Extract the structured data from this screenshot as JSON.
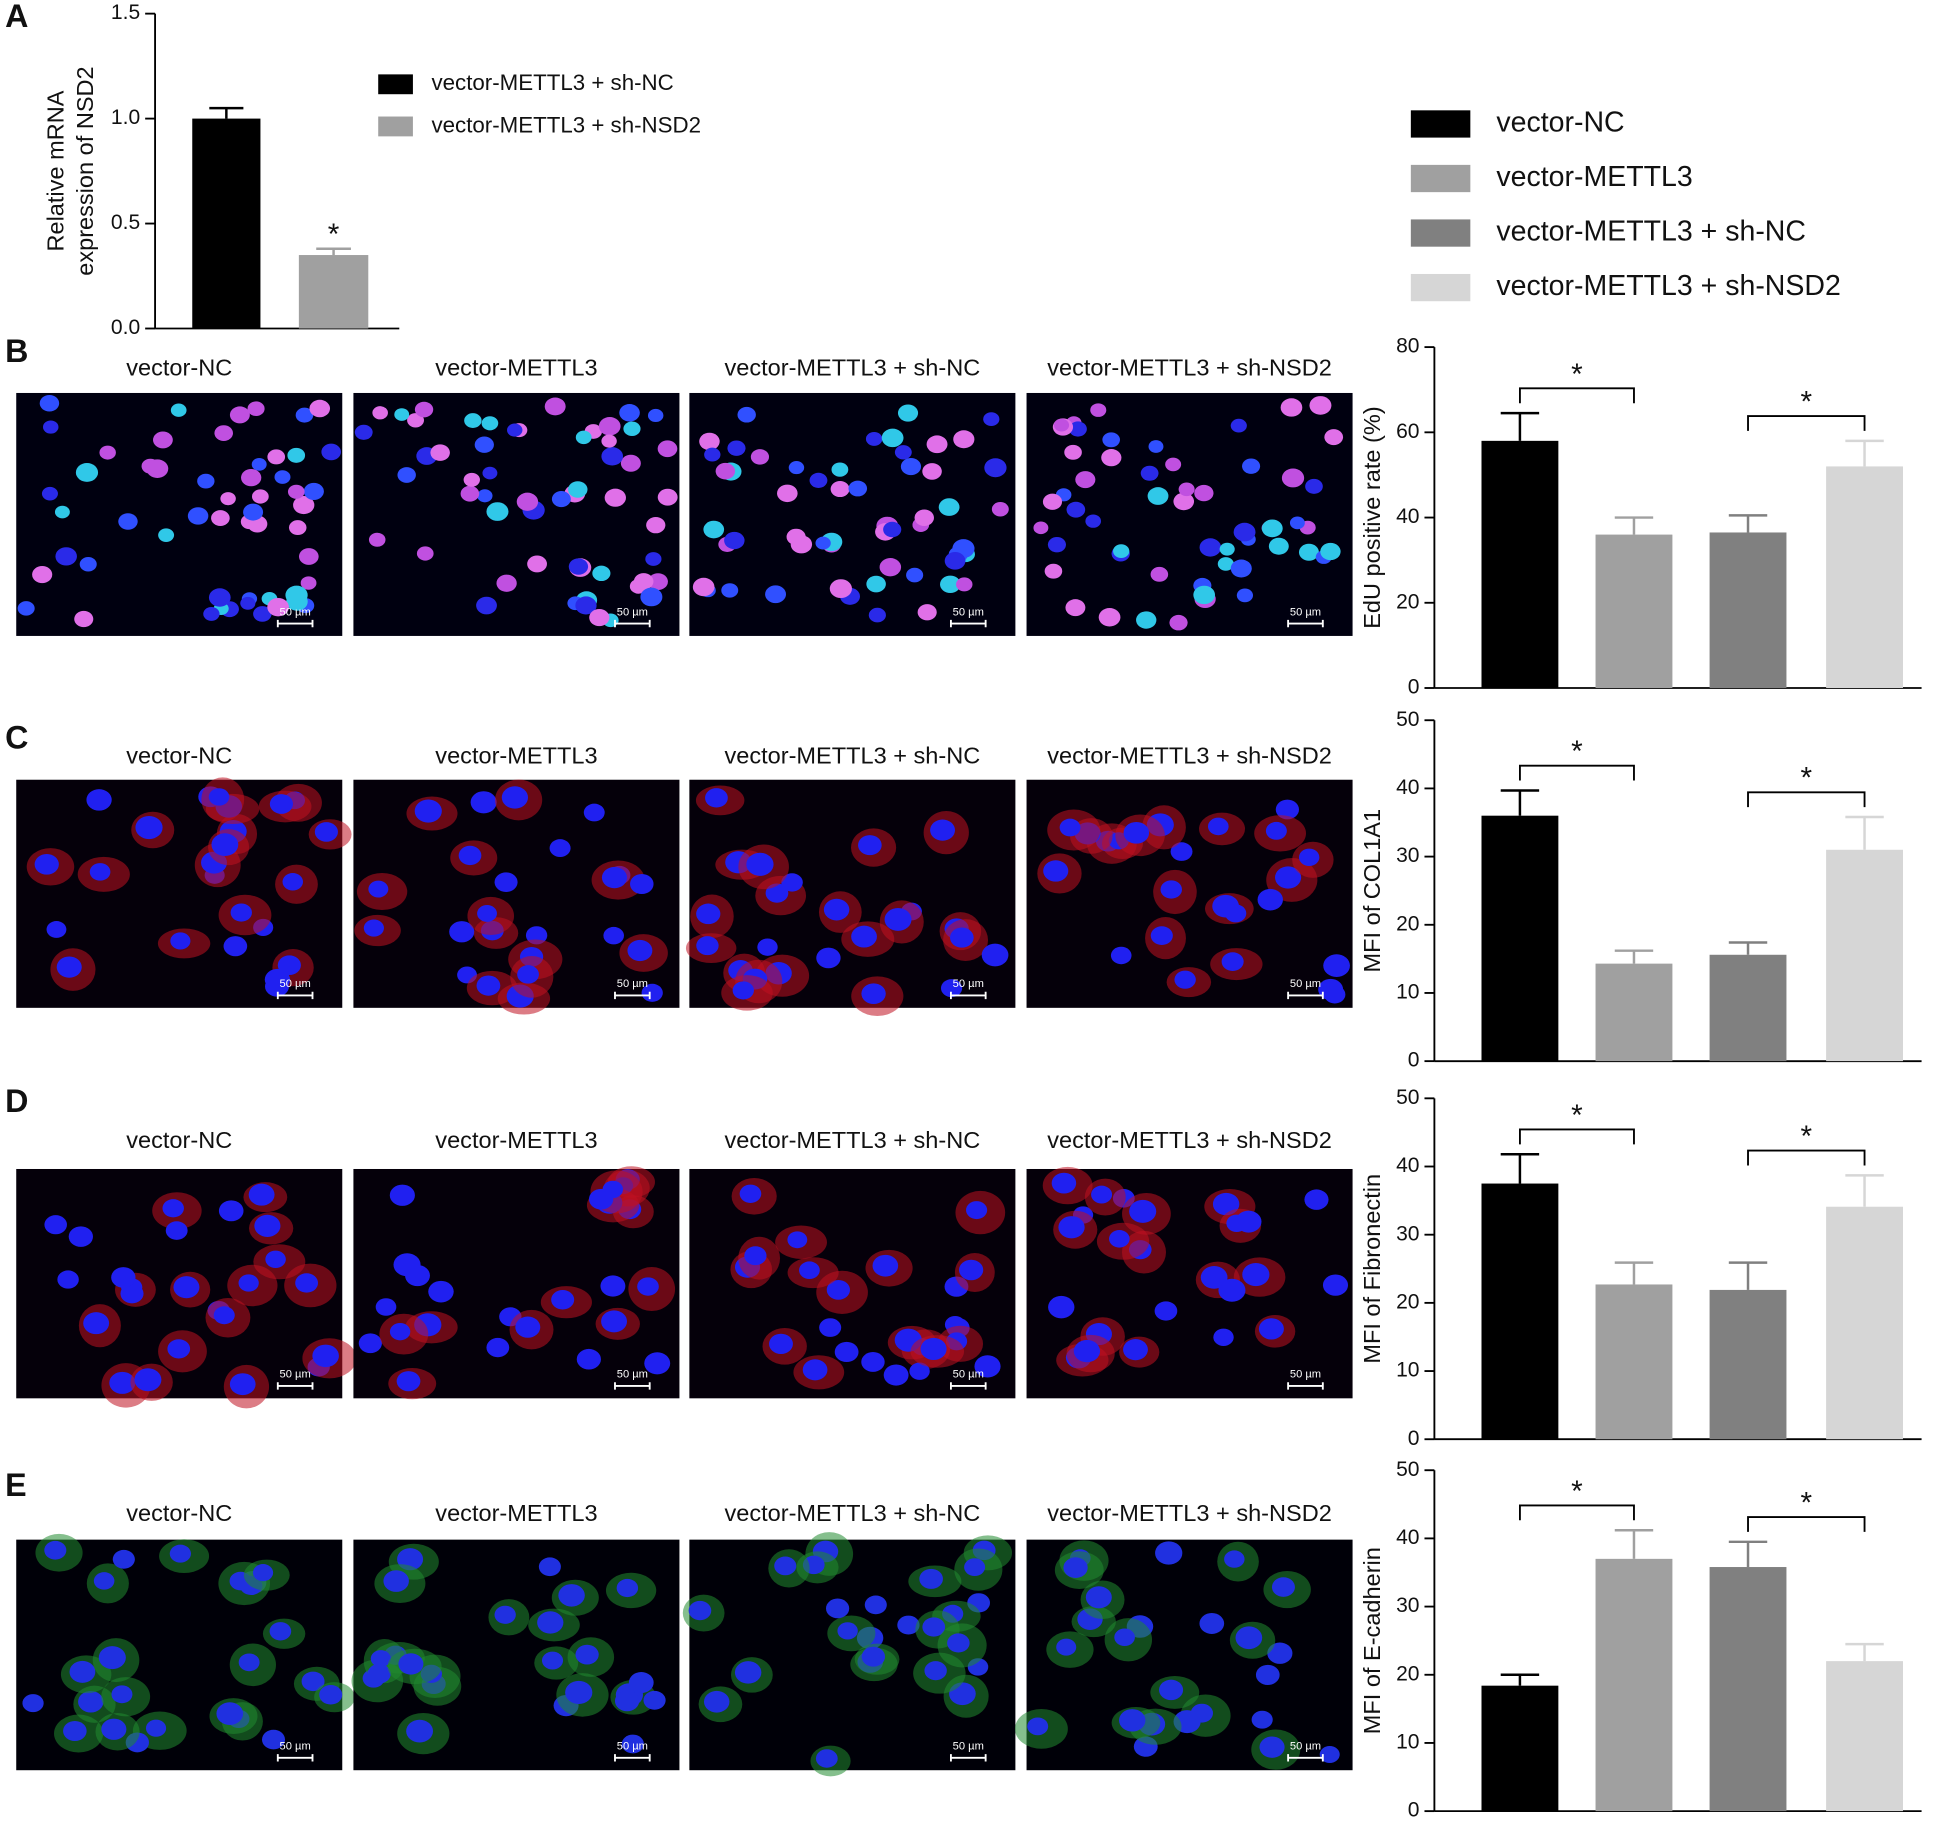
{
  "chart_data": [
    {
      "type": "bar",
      "panel": "A",
      "ylabel": [
        "Relative mRNA",
        "expression of NSD2"
      ],
      "ylim": [
        0,
        1.5
      ],
      "yticks": [
        {
          "value": 0,
          "label": "0.0"
        },
        0.5,
        {
          "value": 1,
          "label": "1.0"
        },
        1.5
      ],
      "series": [
        {
          "name": "vector-METTL3 + sh-NC",
          "color": "#000000",
          "values": [
            1.0
          ],
          "errors": [
            0.05
          ]
        },
        {
          "name": "vector-METTL3 + sh-NSD2",
          "color": "#a0a0a0",
          "values": [
            0.35
          ],
          "errors": [
            0.03
          ]
        }
      ],
      "annotations": [
        "*"
      ]
    },
    {
      "type": "bar",
      "panel": "B",
      "ylabel": "EdU positive rate (%)",
      "ylim": [
        0,
        80
      ],
      "yticks": [
        0,
        20,
        40,
        60,
        80
      ],
      "values": [
        58,
        36,
        36.5,
        52
      ],
      "errors": [
        6.5,
        4,
        4,
        6
      ],
      "annotations": [
        "*",
        "*"
      ],
      "image_titles": [
        "vector-NC",
        "vector-METTL3",
        "vector-METTL3 + sh-NC",
        "vector-METTL3 + sh-NSD2"
      ],
      "scale_bar": "50 µm"
    },
    {
      "type": "bar",
      "panel": "C",
      "ylabel": "MFI of COL1A1",
      "ylim": [
        0,
        50
      ],
      "yticks": [
        0,
        10,
        20,
        30,
        40,
        50
      ],
      "values": [
        36,
        14.3,
        15.6,
        31
      ],
      "errors": [
        3.7,
        1.9,
        1.8,
        4.8
      ],
      "annotations": [
        "*",
        "*"
      ],
      "image_titles": [
        "vector-NC",
        "vector-METTL3",
        "vector-METTL3 + sh-NC",
        "vector-METTL3 + sh-NSD2"
      ],
      "scale_bar": "50 µm"
    },
    {
      "type": "bar",
      "panel": "D",
      "ylabel": "MFI of Fibronectin",
      "ylim": [
        0,
        50
      ],
      "yticks": [
        0,
        10,
        20,
        30,
        40,
        50
      ],
      "values": [
        37.5,
        22.7,
        21.9,
        34.1
      ],
      "errors": [
        4.3,
        3.2,
        4,
        4.6
      ],
      "annotations": [
        "*",
        "*"
      ],
      "image_titles": [
        "vector-NC",
        "vector-METTL3",
        "vector-METTL3 + sh-NC",
        "vector-METTL3 + sh-NSD2"
      ],
      "scale_bar": "50 µm"
    },
    {
      "type": "bar",
      "panel": "E",
      "ylabel": "MFI of E-cadherin",
      "ylim": [
        0,
        50
      ],
      "yticks": [
        0,
        10,
        20,
        30,
        40,
        50
      ],
      "values": [
        18.4,
        37,
        35.8,
        22
      ],
      "errors": [
        1.6,
        4.2,
        3.7,
        2.5
      ],
      "annotations": [
        "*",
        "*"
      ],
      "image_titles": [
        "vector-NC",
        "vector-METTL3",
        "vector-METTL3 + sh-NC",
        "vector-METTL3 + sh-NSD2"
      ],
      "scale_bar": "50 µm"
    }
  ],
  "groups": [
    {
      "name": "vector-NC",
      "color": "#000000"
    },
    {
      "name": "vector-METTL3",
      "color": "#a0a0a0"
    },
    {
      "name": "vector-METTL3 + sh-NC",
      "color": "#808080"
    },
    {
      "name": "vector-METTL3 + sh-NSD2",
      "color": "#d6d6d6"
    }
  ]
}
